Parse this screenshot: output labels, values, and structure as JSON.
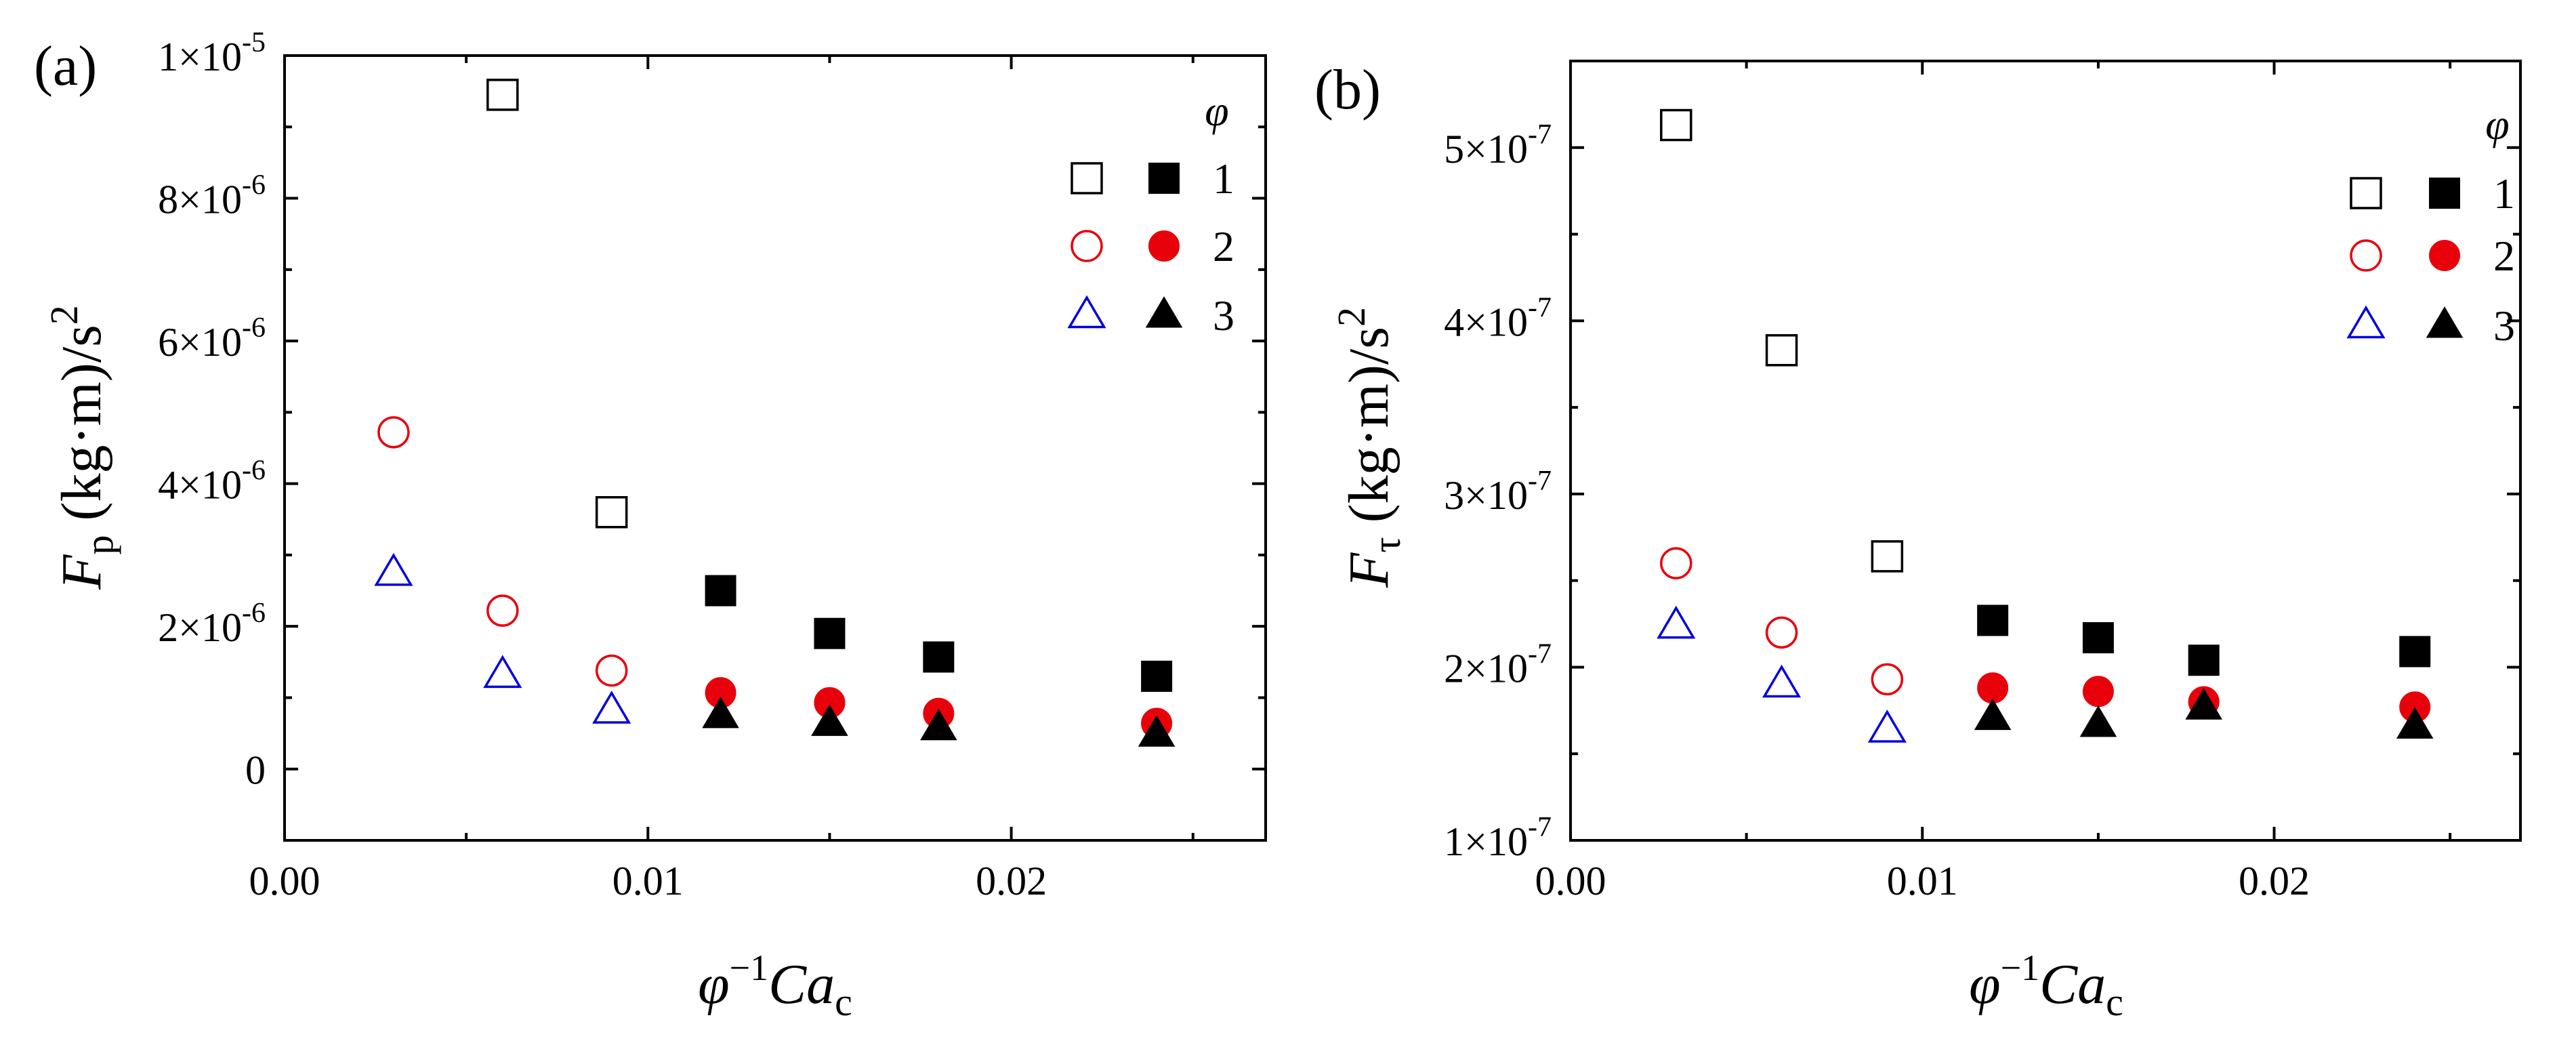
{
  "chart_data": [
    {
      "type": "scatter",
      "panel_label": "(a)",
      "title": "",
      "xlabel": "φ⁻¹Ca_c",
      "ylabel": "F_p (kg·m)/s²",
      "xlim": [
        0,
        0.027
      ],
      "ylim": [
        -1e-06,
        1e-05
      ],
      "x_ticks": [
        0,
        0.01,
        0.02
      ],
      "x_tick_labels": [
        "0.00",
        "0.01",
        "0.02"
      ],
      "y_ticks": [
        0,
        2e-06,
        4e-06,
        6e-06,
        8e-06,
        1e-05
      ],
      "y_tick_labels": [
        {
          "value": 0,
          "mantissa": "0",
          "exponent": ""
        },
        {
          "value": 2e-06,
          "mantissa": "2×10",
          "exponent": "-6"
        },
        {
          "value": 4e-06,
          "mantissa": "4×10",
          "exponent": "-6"
        },
        {
          "value": 6e-06,
          "mantissa": "6×10",
          "exponent": "-6"
        },
        {
          "value": 8e-06,
          "mantissa": "8×10",
          "exponent": "-6"
        },
        {
          "value": 1e-05,
          "mantissa": "1×10",
          "exponent": "-5"
        }
      ],
      "legend_title": "φ",
      "legend_position": "top-right",
      "series": [
        {
          "name": "1 (open)",
          "marker": "square",
          "filled": false,
          "color": "#000000",
          "points": [
            [
              0.006,
              9.45e-06
            ],
            [
              0.009,
              3.6e-06
            ]
          ]
        },
        {
          "name": "1 (filled)",
          "marker": "square",
          "filled": true,
          "color": "#000000",
          "points": [
            [
              0.012,
              2.5e-06
            ],
            [
              0.015,
              1.9e-06
            ],
            [
              0.018,
              1.57e-06
            ],
            [
              0.024,
              1.3e-06
            ]
          ]
        },
        {
          "name": "2 (open)",
          "marker": "circle",
          "filled": false,
          "color": "#e8000b",
          "points": [
            [
              0.003,
              4.72e-06
            ],
            [
              0.006,
              2.22e-06
            ],
            [
              0.009,
              1.38e-06
            ]
          ]
        },
        {
          "name": "2 (filled)",
          "marker": "circle",
          "filled": true,
          "color": "#e8000b",
          "points": [
            [
              0.012,
              1.07e-06
            ],
            [
              0.015,
              9.3e-07
            ],
            [
              0.018,
              7.8e-07
            ],
            [
              0.024,
              6.4e-07
            ]
          ]
        },
        {
          "name": "3 (open)",
          "marker": "triangle",
          "filled": false,
          "color": "#0000e0",
          "points": [
            [
              0.003,
              2.75e-06
            ],
            [
              0.006,
              1.32e-06
            ],
            [
              0.009,
              8.2e-07
            ]
          ]
        },
        {
          "name": "3 (filled)",
          "marker": "triangle",
          "filled": true,
          "color": "#000000",
          "points": [
            [
              0.012,
              7.5e-07
            ],
            [
              0.015,
              6.4e-07
            ],
            [
              0.018,
              5.8e-07
            ],
            [
              0.024,
              4.9e-07
            ]
          ]
        }
      ],
      "legend_rows": [
        {
          "label": "1",
          "open_series": 0,
          "filled_series": 1
        },
        {
          "label": "2",
          "open_series": 2,
          "filled_series": 3
        },
        {
          "label": "3",
          "open_series": 4,
          "filled_series": 5
        }
      ]
    },
    {
      "type": "scatter",
      "panel_label": "(b)",
      "title": "",
      "xlabel": "φ⁻¹Ca_c",
      "ylabel": "F_τ (kg·m)/s²",
      "xlim": [
        0,
        0.027
      ],
      "ylim": [
        1e-07,
        5.5e-07
      ],
      "x_ticks": [
        0,
        0.01,
        0.02
      ],
      "x_tick_labels": [
        "0.00",
        "0.01",
        "0.02"
      ],
      "y_ticks": [
        1e-07,
        2e-07,
        3e-07,
        4e-07,
        5e-07
      ],
      "y_tick_labels": [
        {
          "value": 1e-07,
          "mantissa": "1×10",
          "exponent": "-7"
        },
        {
          "value": 2e-07,
          "mantissa": "2×10",
          "exponent": "-7"
        },
        {
          "value": 3e-07,
          "mantissa": "3×10",
          "exponent": "-7"
        },
        {
          "value": 4e-07,
          "mantissa": "4×10",
          "exponent": "-7"
        },
        {
          "value": 5e-07,
          "mantissa": "5×10",
          "exponent": "-7"
        }
      ],
      "legend_title": "φ",
      "legend_position": "top-right",
      "series": [
        {
          "name": "1 (open)",
          "marker": "square",
          "filled": false,
          "color": "#000000",
          "points": [
            [
              0.003,
              5.13e-07
            ],
            [
              0.006,
              3.83e-07
            ],
            [
              0.009,
              2.64e-07
            ]
          ]
        },
        {
          "name": "1 (filled)",
          "marker": "square",
          "filled": true,
          "color": "#000000",
          "points": [
            [
              0.012,
              2.27e-07
            ],
            [
              0.015,
              2.17e-07
            ],
            [
              0.018,
              2.04e-07
            ],
            [
              0.024,
              2.09e-07
            ]
          ]
        },
        {
          "name": "2 (open)",
          "marker": "circle",
          "filled": false,
          "color": "#e8000b",
          "points": [
            [
              0.003,
              2.6e-07
            ],
            [
              0.006,
              2.2e-07
            ],
            [
              0.009,
              1.93e-07
            ]
          ]
        },
        {
          "name": "2 (filled)",
          "marker": "circle",
          "filled": true,
          "color": "#e8000b",
          "points": [
            [
              0.012,
              1.88e-07
            ],
            [
              0.015,
              1.86e-07
            ],
            [
              0.018,
              1.8e-07
            ],
            [
              0.024,
              1.77e-07
            ]
          ]
        },
        {
          "name": "3 (open)",
          "marker": "triangle",
          "filled": false,
          "color": "#0000e0",
          "points": [
            [
              0.003,
              2.24e-07
            ],
            [
              0.006,
              1.9e-07
            ],
            [
              0.009,
              1.64e-07
            ]
          ]
        },
        {
          "name": "3 (filled)",
          "marker": "triangle",
          "filled": true,
          "color": "#000000",
          "points": [
            [
              0.012,
              1.71e-07
            ],
            [
              0.015,
              1.67e-07
            ],
            [
              0.018,
              1.77e-07
            ],
            [
              0.024,
              1.66e-07
            ]
          ]
        }
      ],
      "legend_rows": [
        {
          "label": "1",
          "open_series": 0,
          "filled_series": 1
        },
        {
          "label": "2",
          "open_series": 2,
          "filled_series": 3
        },
        {
          "label": "3",
          "open_series": 4,
          "filled_series": 5
        }
      ]
    }
  ]
}
